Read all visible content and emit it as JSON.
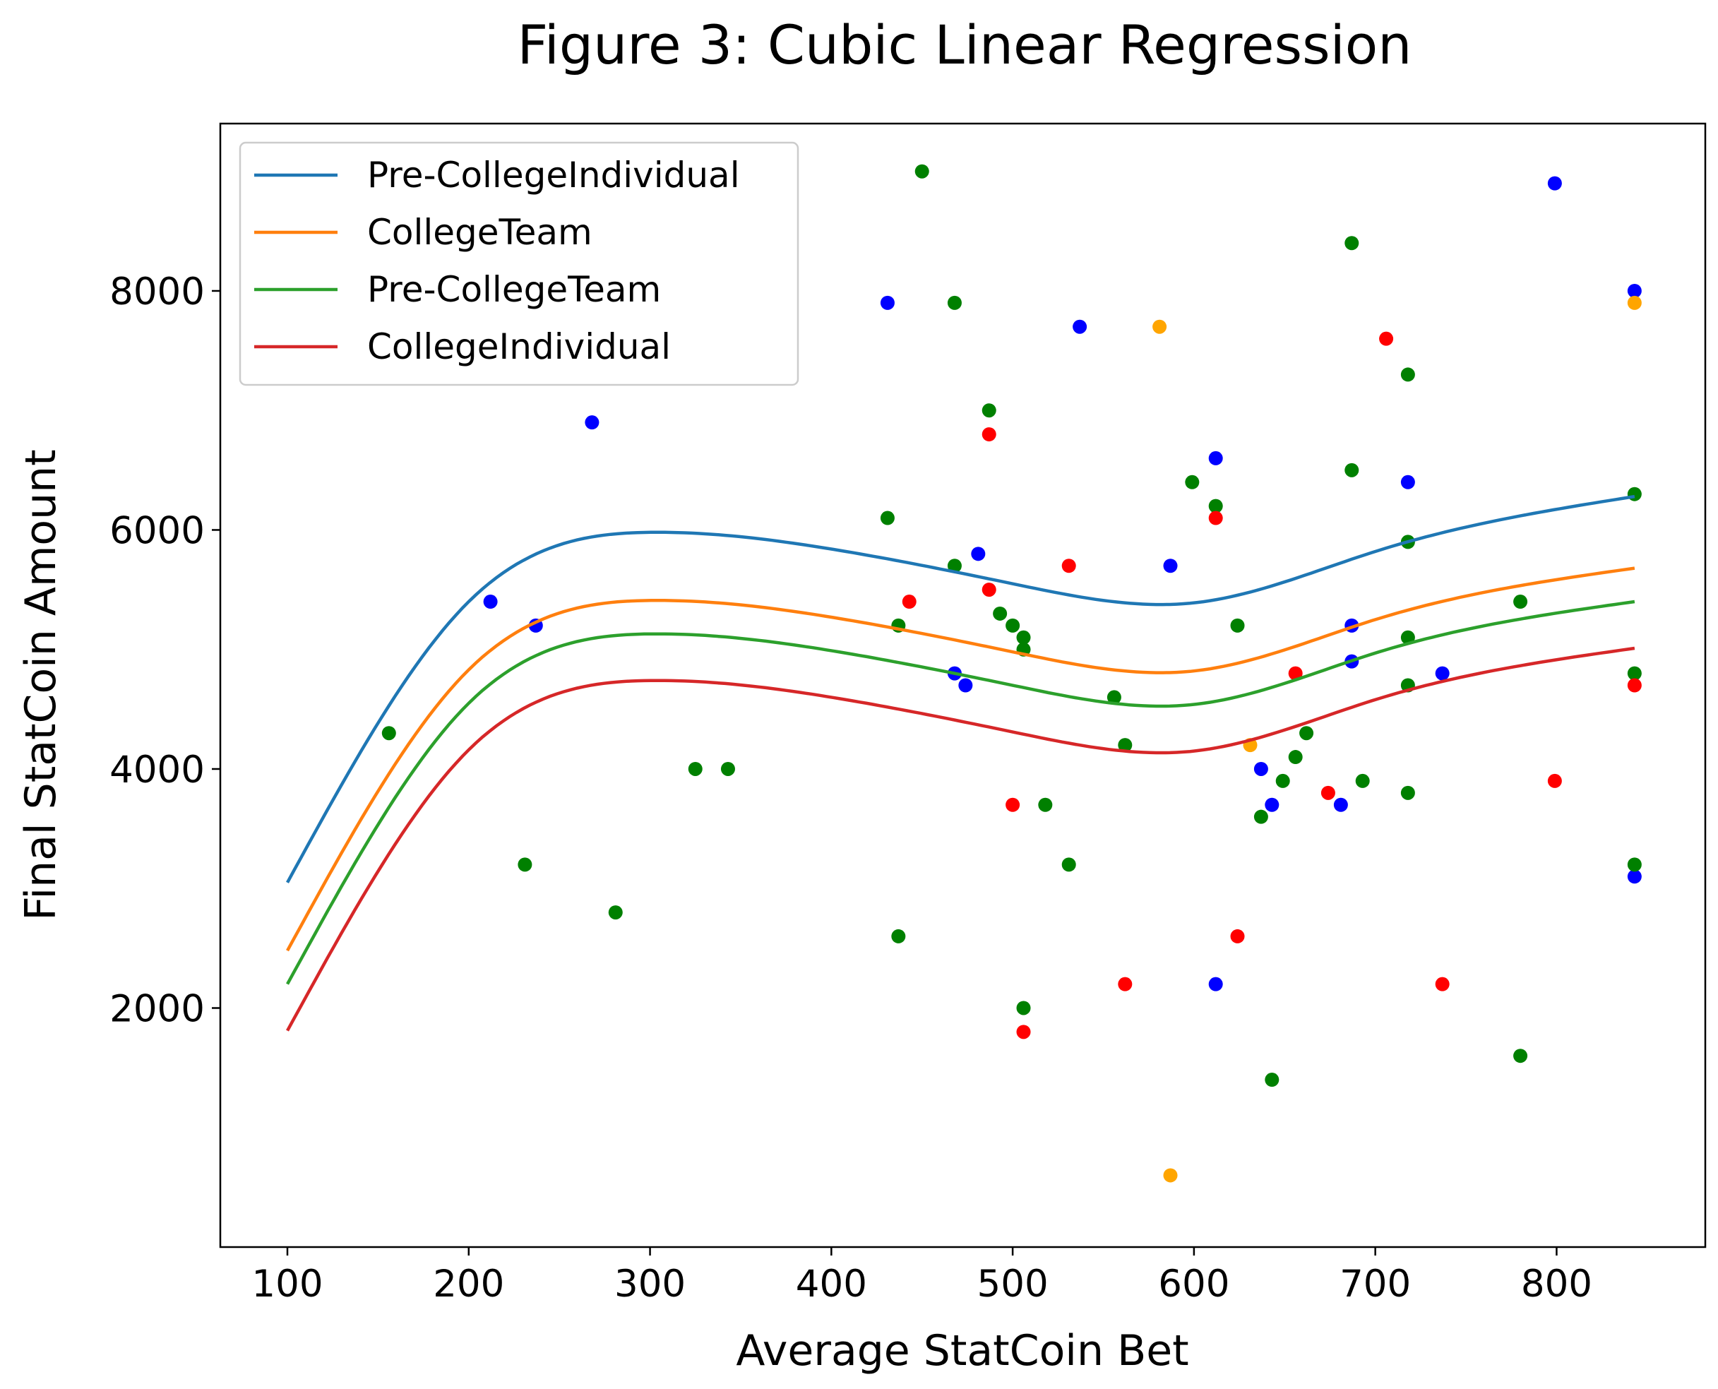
{
  "chart_data": {
    "type": "scatter",
    "title": "Figure 3: Cubic Linear Regression",
    "xlabel": "Average StatCoin Bet",
    "ylabel": "Final StatCoin Amount",
    "xlim": [
      63,
      882
    ],
    "ylim": [
      0,
      9400
    ],
    "xticks": [
      100,
      200,
      300,
      400,
      500,
      600,
      700,
      800
    ],
    "yticks": [
      2000,
      4000,
      6000,
      8000
    ],
    "grid": false,
    "legend_position": "top-left",
    "series": [
      {
        "name": "Pre-CollegeIndividual",
        "color": "#1f77b4",
        "curve": [
          3050,
          5400,
          5980,
          5840,
          5550,
          5390,
          5820,
          6280
        ]
      },
      {
        "name": "CollegeTeam",
        "color": "#ff7f0e",
        "curve": [
          2480,
          4830,
          5410,
          5270,
          4980,
          4820,
          5250,
          5680
        ]
      },
      {
        "name": "Pre-CollegeTeam",
        "color": "#2ca02c",
        "curve": [
          2200,
          4550,
          5130,
          4990,
          4700,
          4540,
          4970,
          5400
        ]
      },
      {
        "name": "CollegeIndividual",
        "color": "#d62728",
        "curve": [
          1810,
          4160,
          4740,
          4600,
          4310,
          4150,
          4580,
          5010
        ]
      }
    ],
    "curve_x": [
      100,
      200,
      300,
      400,
      500,
      600,
      700,
      843
    ],
    "points": {
      "blue": {
        "color": "#0000ff",
        "data": [
          [
            212,
            5400
          ],
          [
            237,
            5200
          ],
          [
            268,
            6900
          ],
          [
            431,
            7900
          ],
          [
            468,
            4800
          ],
          [
            474,
            4700
          ],
          [
            481,
            5800
          ],
          [
            537,
            7700
          ],
          [
            587,
            5700
          ],
          [
            612,
            6600
          ],
          [
            612,
            2200
          ],
          [
            637,
            4000
          ],
          [
            643,
            3700
          ],
          [
            681,
            3700
          ],
          [
            687,
            5200
          ],
          [
            687,
            4900
          ],
          [
            718,
            6400
          ],
          [
            737,
            4800
          ],
          [
            799,
            8900
          ],
          [
            843,
            8000
          ],
          [
            843,
            3100
          ]
        ]
      },
      "green": {
        "color": "#008000",
        "data": [
          [
            156,
            4300
          ],
          [
            231,
            3200
          ],
          [
            281,
            2800
          ],
          [
            325,
            4000
          ],
          [
            343,
            4000
          ],
          [
            431,
            6100
          ],
          [
            437,
            5200
          ],
          [
            437,
            2600
          ],
          [
            450,
            9000
          ],
          [
            468,
            7900
          ],
          [
            468,
            5700
          ],
          [
            487,
            7000
          ],
          [
            493,
            5300
          ],
          [
            500,
            5200
          ],
          [
            506,
            5100
          ],
          [
            506,
            5000
          ],
          [
            506,
            2000
          ],
          [
            518,
            3700
          ],
          [
            531,
            3200
          ],
          [
            556,
            4600
          ],
          [
            562,
            4200
          ],
          [
            599,
            6400
          ],
          [
            612,
            6200
          ],
          [
            624,
            5200
          ],
          [
            637,
            3600
          ],
          [
            643,
            1400
          ],
          [
            649,
            3900
          ],
          [
            656,
            4100
          ],
          [
            662,
            4300
          ],
          [
            687,
            8400
          ],
          [
            687,
            6500
          ],
          [
            693,
            3900
          ],
          [
            718,
            7300
          ],
          [
            718,
            5900
          ],
          [
            718,
            5100
          ],
          [
            718,
            4700
          ],
          [
            718,
            3800
          ],
          [
            780,
            5400
          ],
          [
            780,
            1600
          ],
          [
            843,
            6300
          ],
          [
            843,
            4800
          ],
          [
            843,
            3200
          ]
        ]
      },
      "red": {
        "color": "#ff0000",
        "data": [
          [
            443,
            5400
          ],
          [
            487,
            6800
          ],
          [
            487,
            5500
          ],
          [
            500,
            3700
          ],
          [
            506,
            1800
          ],
          [
            531,
            5700
          ],
          [
            562,
            2200
          ],
          [
            612,
            6100
          ],
          [
            624,
            2600
          ],
          [
            656,
            4800
          ],
          [
            674,
            3800
          ],
          [
            706,
            7600
          ],
          [
            737,
            2200
          ],
          [
            799,
            3900
          ],
          [
            843,
            4700
          ]
        ]
      },
      "orange": {
        "color": "#ffa500",
        "data": [
          [
            581,
            7700
          ],
          [
            587,
            600
          ],
          [
            631,
            4200
          ],
          [
            843,
            7900
          ]
        ]
      }
    }
  }
}
